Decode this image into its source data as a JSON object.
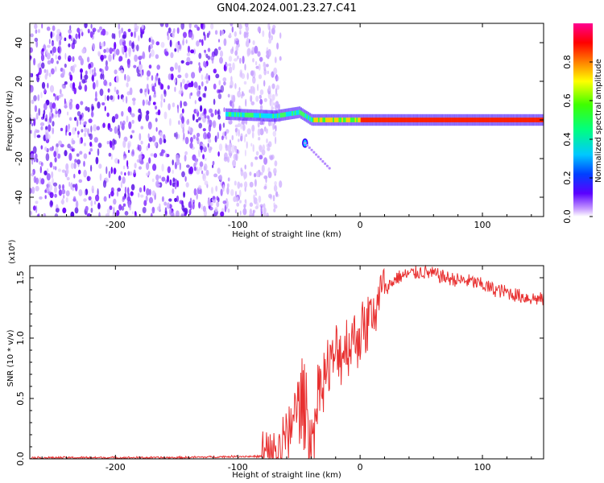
{
  "title": "GN04.2024.001.23.27.C41",
  "colorbar": {
    "label": "Normalized spectral amplitude",
    "ticks": [
      "0.0",
      "0.2",
      "0.4",
      "0.6",
      "0.8"
    ],
    "tick_values": [
      0.0,
      0.2,
      0.4,
      0.6,
      0.8
    ]
  },
  "chart_data": [
    {
      "type": "heatmap",
      "xlabel": "Height of straight line (km)",
      "ylabel": "Frequency (Hz)",
      "xlim": [
        -270,
        150
      ],
      "ylim": [
        -50,
        50
      ],
      "xticks": [
        "-200",
        "-100",
        "0",
        "100"
      ],
      "xtick_values": [
        -200,
        -100,
        0,
        100
      ],
      "yticks": [
        "-40",
        "-20",
        "0",
        "20",
        "40"
      ],
      "ytick_values": [
        -40,
        -20,
        0,
        20,
        40
      ],
      "colorscale": "rainbow (0 = white/violet, 1 = magenta/red)",
      "description_values": {
        "noise_region_x": [
          -270,
          -90
        ],
        "signal_start_x": -110,
        "signal_frequency": [
          [
            -110,
            3
          ],
          [
            -70,
            2
          ],
          [
            -50,
            4
          ],
          [
            -40,
            0
          ],
          [
            0,
            0
          ],
          [
            150,
            0
          ]
        ],
        "weak_tail": [
          [
            -45,
            -12
          ],
          [
            -25,
            -25
          ]
        ]
      }
    },
    {
      "type": "line",
      "xlabel": "Height of straight line (km)",
      "ylabel": "SNR (10 * v/v)",
      "yunit": "(x10⁴)",
      "xlim": [
        -270,
        150
      ],
      "ylim": [
        0,
        1.6
      ],
      "xticks": [
        "-200",
        "-100",
        "0",
        "100"
      ],
      "xtick_values": [
        -200,
        -100,
        0,
        100
      ],
      "yticks": [
        "0.0",
        "0.5",
        "1.0",
        "1.5"
      ],
      "ytick_values": [
        0.0,
        0.5,
        1.0,
        1.5
      ],
      "color": "#e83030",
      "series": [
        {
          "x": [
            -270,
            -250,
            -200,
            -150,
            -100,
            -80,
            -70,
            -60,
            -55,
            -50,
            -45,
            -40,
            -35,
            -30,
            -25,
            -20,
            -10,
            0,
            10,
            20,
            30,
            40,
            50,
            60,
            70,
            80,
            90,
            100,
            110,
            120,
            130,
            140,
            150
          ],
          "values": [
            0.01,
            0.01,
            0.01,
            0.01,
            0.02,
            0.02,
            0.05,
            0.15,
            0.35,
            0.45,
            0.5,
            0.05,
            0.55,
            0.7,
            0.75,
            0.85,
            0.95,
            1.05,
            1.2,
            1.4,
            1.5,
            1.53,
            1.55,
            1.53,
            1.5,
            1.48,
            1.47,
            1.44,
            1.4,
            1.38,
            1.35,
            1.33,
            1.32
          ]
        }
      ]
    }
  ]
}
